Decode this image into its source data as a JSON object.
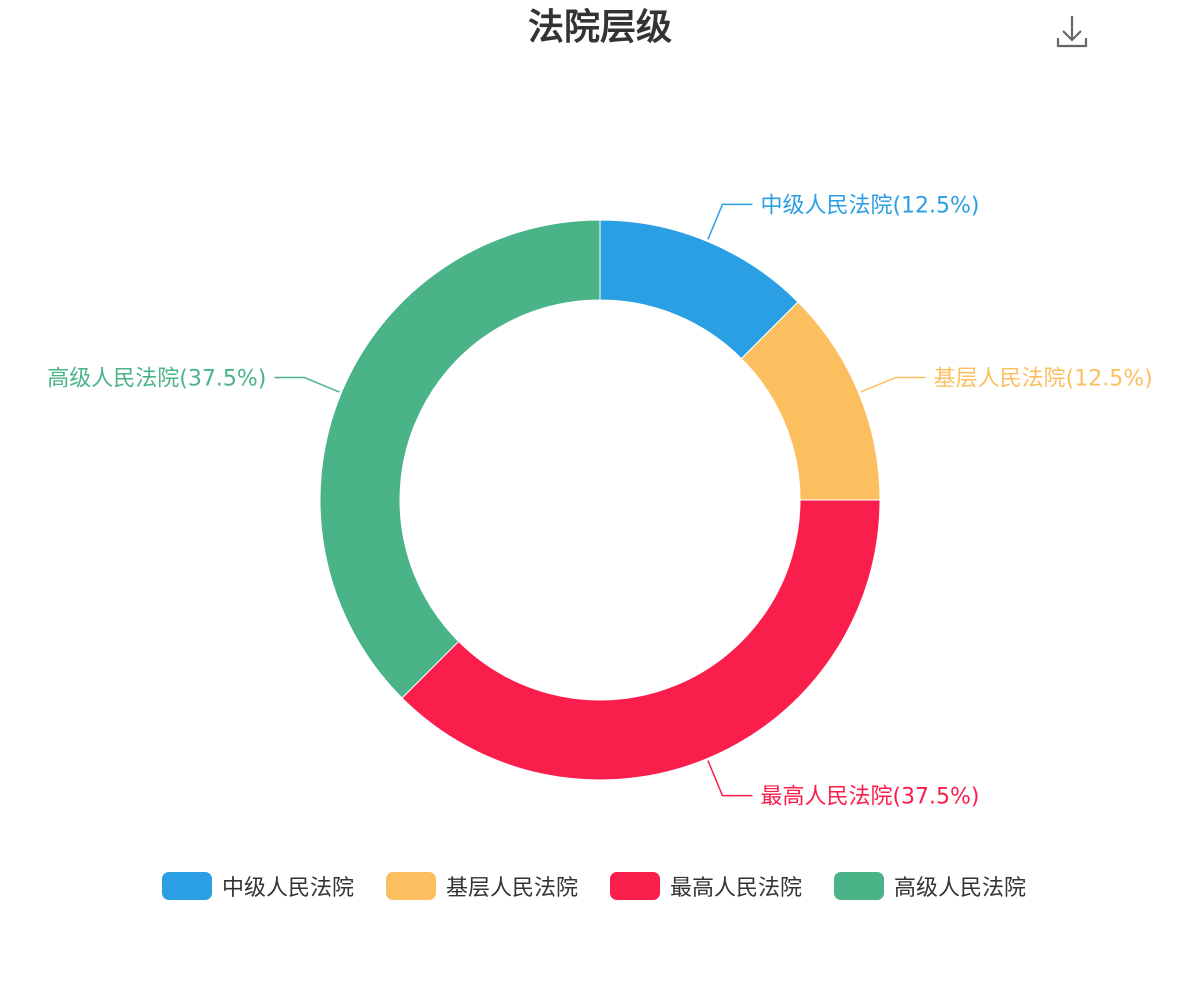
{
  "chart_data": {
    "type": "pie",
    "title": "法院层级",
    "categories": [
      "中级人民法院",
      "基层人民法院",
      "最高人民法院",
      "高级人民法院"
    ],
    "values": [
      12.5,
      12.5,
      37.5,
      37.5
    ],
    "labels": [
      "中级人民法院(12.5%)",
      "基层人民法院(12.5%)",
      "最高人民法院(37.5%)",
      "高级人民法院(37.5%)"
    ],
    "colors": [
      "#2b9fe4",
      "#fcbf60",
      "#fa1e4c",
      "#4ab387"
    ],
    "donut": true,
    "legend_position": "bottom"
  },
  "toolbar": {
    "download_icon": "download-icon"
  }
}
